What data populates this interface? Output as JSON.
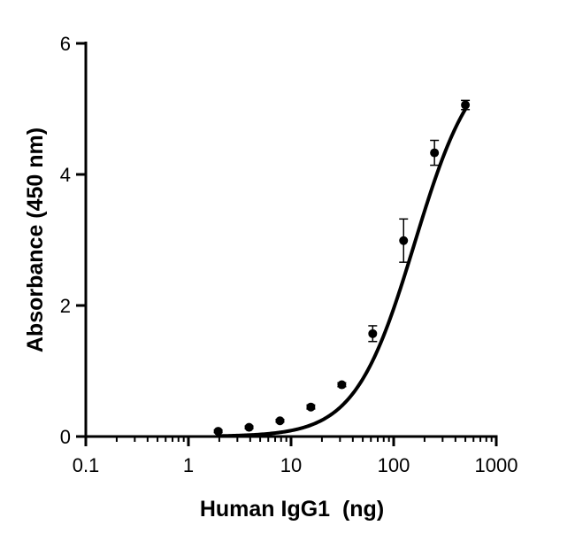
{
  "chart_data": {
    "type": "scatter",
    "title": "",
    "xlabel": "Human IgG1  (ng)",
    "ylabel": "Absorbance (450 nm)",
    "x_scale": "log",
    "xlim": [
      0.1,
      1000
    ],
    "ylim": [
      0,
      6
    ],
    "x_ticks": [
      0.1,
      1,
      10,
      100,
      1000
    ],
    "x_tick_labels": [
      "0.1",
      "1",
      "10",
      "100",
      "1000"
    ],
    "y_ticks": [
      0,
      2,
      4,
      6
    ],
    "y_tick_labels": [
      "0",
      "2",
      "4",
      "6"
    ],
    "grid": false,
    "legend": "none",
    "series": [
      {
        "x": [
          1.95,
          3.9,
          7.8,
          15.6,
          31.25,
          62.5,
          125,
          250,
          500
        ],
        "y": [
          0.08,
          0.14,
          0.24,
          0.45,
          0.79,
          1.57,
          2.99,
          4.33,
          5.06
        ],
        "error": [
          0.02,
          0.02,
          0.02,
          0.03,
          0.03,
          0.12,
          0.33,
          0.19,
          0.07
        ]
      }
    ],
    "fit_curve": {
      "type": "4PL",
      "bottom": 0,
      "top": 5.9,
      "ec50": 160,
      "hill": 1.5,
      "x_range": [
        2,
        500
      ]
    },
    "colors": {
      "marks": "#000000",
      "background": "#ffffff"
    }
  }
}
